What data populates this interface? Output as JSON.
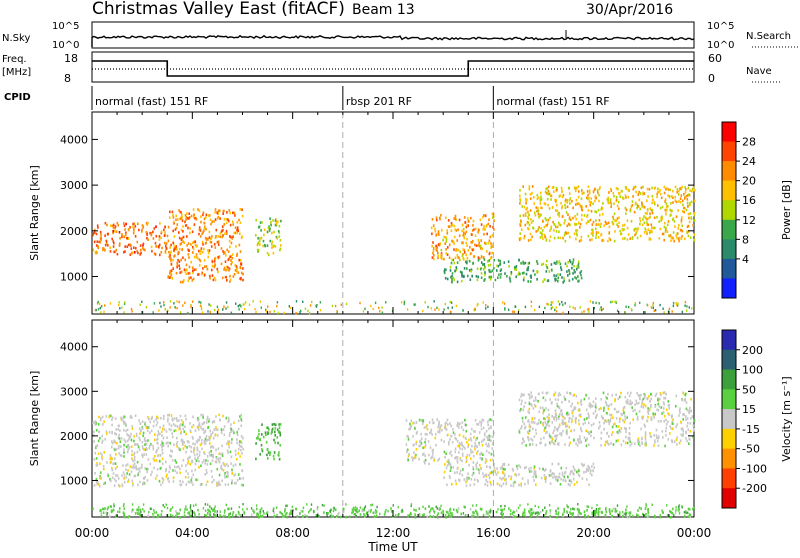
{
  "header": {
    "title": "Christmas Valley East (fitACF)",
    "beam": "Beam 13",
    "date": "30/Apr/2016"
  },
  "strip": {
    "nsky_label": "N.Sky",
    "nsky_ticks": [
      "10^5",
      "10^0"
    ],
    "nsearch_label": "N.Search",
    "nsearch_ticks": [
      "10^5",
      "10^0"
    ],
    "freq_label_1": "Freq.",
    "freq_label_2": "[MHz]",
    "freq_ticks": [
      "18",
      "8"
    ],
    "nave_label": "Nave",
    "nave_ticks": [
      "60",
      "0"
    ],
    "cpid_label": "CPID",
    "cpid_segments": [
      {
        "label": "normal (fast) 151 RF",
        "start_hour": 0
      },
      {
        "label": "rbsp 201 RF",
        "start_hour": 10
      },
      {
        "label": "normal (fast) 151 RF",
        "start_hour": 16
      }
    ]
  },
  "axes": {
    "xlabel": "Time UT",
    "xticks": [
      "00:00",
      "04:00",
      "08:00",
      "12:00",
      "16:00",
      "20:00",
      "00:00"
    ],
    "ylabel": "Slant Range [km]",
    "yticks": [
      "4000",
      "3000",
      "2000",
      "1000"
    ]
  },
  "power_colorbar": {
    "label": "Power [dB]",
    "ticks": [
      "28",
      "24",
      "20",
      "16",
      "12",
      "8",
      "4"
    ],
    "colors": [
      "#ff0000",
      "#ff4400",
      "#ff8c00",
      "#ffc000",
      "#b0d800",
      "#3aa84a",
      "#2a8a6a",
      "#205a9a",
      "#1020ff"
    ]
  },
  "velocity_colorbar": {
    "label": "Velocity [m s⁻¹]",
    "ticks": [
      "200",
      "100",
      "50",
      "15",
      "-15",
      "-50",
      "-100",
      "-200"
    ],
    "colors": [
      "#2a2ab0",
      "#2a6070",
      "#3ca03c",
      "#5ad040",
      "#c8c8c8",
      "#ffd000",
      "#ff9000",
      "#ff4000",
      "#e00000"
    ]
  },
  "chart_data": {
    "type": "heatmap",
    "title": "Christmas Valley East (fitACF)",
    "x_range_hours": [
      0,
      24
    ],
    "y_range_km": [
      180,
      4600
    ],
    "xlabel": "Time UT",
    "ylabel": "Slant Range [km]",
    "grid": "dashed vertical lines at 10:00 and 16:00",
    "frequency_steps": [
      {
        "start_hour": 0,
        "end_hour": 3,
        "freq_mhz": 15
      },
      {
        "start_hour": 3,
        "end_hour": 15,
        "freq_mhz": 10
      },
      {
        "start_hour": 15,
        "end_hour": 24,
        "freq_mhz": 15
      }
    ],
    "power_echo_regions": [
      {
        "hours": [
          0,
          3
        ],
        "range_km": [
          1500,
          2200
        ],
        "power_db": 26
      },
      {
        "hours": [
          3,
          6
        ],
        "range_km": [
          900,
          2500
        ],
        "power_db": 24
      },
      {
        "hours": [
          6.5,
          7.5
        ],
        "range_km": [
          1500,
          2300
        ],
        "power_db": 16
      },
      {
        "hours": [
          13.5,
          16
        ],
        "range_km": [
          1400,
          2400
        ],
        "power_db": 22
      },
      {
        "hours": [
          14,
          19.5
        ],
        "range_km": [
          900,
          1400
        ],
        "power_db": 12
      },
      {
        "hours": [
          17,
          24
        ],
        "range_km": [
          1800,
          3000
        ],
        "power_db": 20
      }
    ],
    "velocity_echo_regions": [
      {
        "hours": [
          0,
          6
        ],
        "range_km": [
          900,
          2500
        ],
        "velocity_ms": 0
      },
      {
        "hours": [
          6.5,
          7.5
        ],
        "range_km": [
          1500,
          2300
        ],
        "velocity_ms": 50
      },
      {
        "hours": [
          12.5,
          16
        ],
        "range_km": [
          1400,
          2400
        ],
        "velocity_ms": 0
      },
      {
        "hours": [
          14,
          20
        ],
        "range_km": [
          900,
          1400
        ],
        "velocity_ms": 0
      },
      {
        "hours": [
          17,
          24
        ],
        "range_km": [
          1800,
          3000
        ],
        "velocity_ms": 0
      },
      {
        "hours": [
          0,
          24
        ],
        "range_km": [
          200,
          400
        ],
        "velocity_ms": 30
      }
    ]
  }
}
